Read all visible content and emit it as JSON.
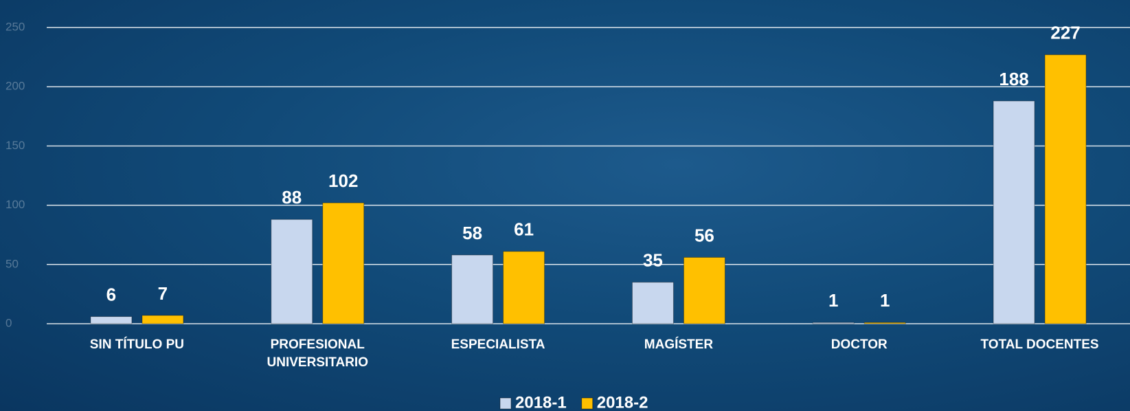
{
  "chart_data": {
    "type": "bar",
    "categories": [
      "SIN TÍTULO PU",
      "PROFESIONAL UNIVERSITARIO",
      "ESPECIALISTA",
      "MAGÍSTER",
      "DOCTOR",
      "TOTAL DOCENTES"
    ],
    "series": [
      {
        "name": "2018-1",
        "color": "#c8d7ee",
        "values": [
          6,
          88,
          58,
          35,
          1,
          188
        ]
      },
      {
        "name": "2018-2",
        "color": "#ffc000",
        "values": [
          7,
          102,
          61,
          56,
          1,
          227
        ]
      }
    ],
    "ylim": [
      0,
      250
    ],
    "yticks": [
      0,
      50,
      100,
      150,
      200,
      250
    ],
    "grid": true,
    "legend": "bottom"
  }
}
